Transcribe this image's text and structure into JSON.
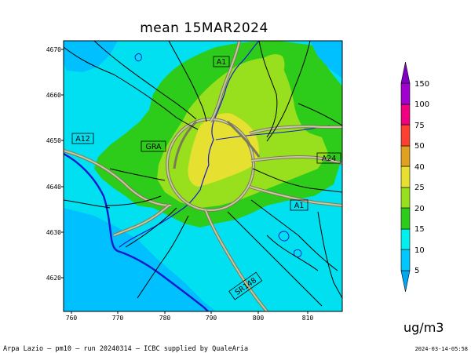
{
  "title": "mean 15MAR2024",
  "units": "ug/m3",
  "footer": {
    "left": "Arpa Lazio – pm10 – run 20240314 – ICBC supplied by QualeAria",
    "right": "2024-03-14-05:58"
  },
  "axes": {
    "x_ticks": [
      "760",
      "770",
      "780",
      "790",
      "800",
      "810"
    ],
    "y_ticks": [
      "4670",
      "4660",
      "4650",
      "4640",
      "4630",
      "4620"
    ]
  },
  "road_labels": [
    "A1",
    "A12",
    "GRA",
    "A24",
    "A1",
    "SR148"
  ],
  "colorbar": {
    "labels": [
      "5",
      "10",
      "15",
      "20",
      "25",
      "40",
      "50",
      "75",
      "100",
      "150"
    ],
    "colors": [
      "#00a8f0",
      "#00c8ff",
      "#00f0f0",
      "#2ecc1a",
      "#98e01e",
      "#e8e030",
      "#e0a020",
      "#ff4030",
      "#f00080",
      "#a000d0",
      "#8000c0"
    ]
  },
  "field_colors": {
    "band_5_10": "#00c0ff",
    "band_10_15": "#00e0f0",
    "band_15_20": "#2ecc1a",
    "band_20_25": "#98e01e",
    "band_25_40": "#e6e030",
    "coast": "#1818d0",
    "roads": "#000000"
  }
}
